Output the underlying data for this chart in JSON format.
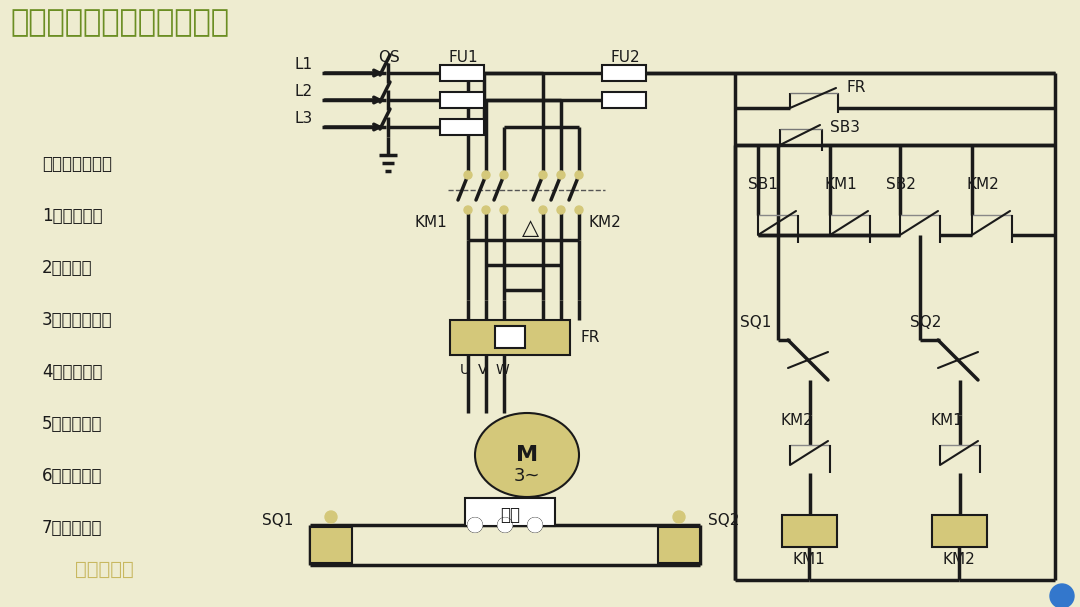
{
  "title": "三相电机位置控制（保护）",
  "bg_color": "#eeecd0",
  "line_color": "#1a1a1a",
  "text_color": "#1a1a1a",
  "green_text_color": "#6b8e23",
  "gold_color": "#d4c87a",
  "gold_dark": "#c8b860",
  "title_fontsize": 20,
  "label_fontsize": 10,
  "analysis_items": [
    "电路组成分析：",
    "1、隔离开关",
    "2、熔断器",
    "3、交流接触器",
    "4、热继电器",
    "5、按钮开关",
    "6、三相电机",
    "7、行程开关"
  ],
  "watermark": "电气小行家"
}
